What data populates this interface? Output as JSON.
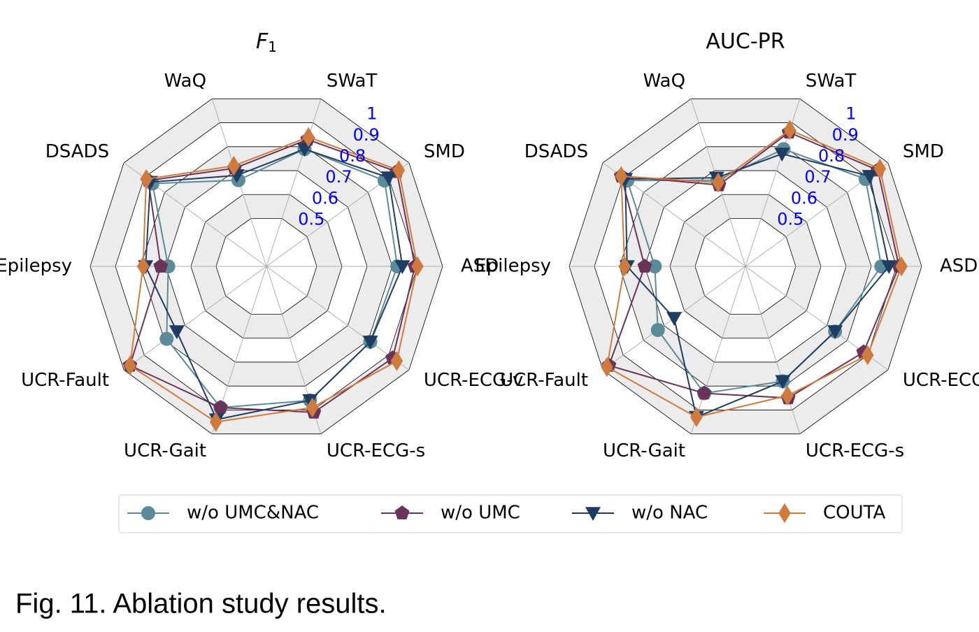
{
  "chart_data": [
    {
      "type": "radar",
      "title": "F",
      "title_subscript": "1",
      "categories": [
        "ASD",
        "SMD",
        "SWaT",
        "WaQ",
        "DSADS",
        "Epilepsy",
        "UCR-Fault",
        "UCR-Gait",
        "UCR-ECG-s",
        "UCR-ECG-v"
      ],
      "rlim": [
        0.3,
        1.0
      ],
      "rticks": [
        0.5,
        0.6,
        0.7,
        0.8,
        0.9,
        1.0
      ],
      "series": [
        {
          "name": "w/o UMC&NAC",
          "color": "#5b8a99",
          "marker": "circle",
          "values": [
            0.82,
            0.88,
            0.79,
            0.66,
            0.86,
            0.69,
            0.79,
            0.89,
            0.86,
            0.81
          ]
        },
        {
          "name": "w/o UMC",
          "color": "#6a3359",
          "marker": "pentagon",
          "values": [
            0.89,
            0.94,
            0.83,
            0.71,
            0.88,
            0.72,
            0.97,
            0.89,
            0.91,
            0.92
          ]
        },
        {
          "name": "w/o NAC",
          "color": "#1f3c63",
          "marker": "triangle-down",
          "values": [
            0.84,
            0.9,
            0.79,
            0.68,
            0.87,
            0.78,
            0.74,
            0.94,
            0.86,
            0.81
          ]
        },
        {
          "name": "COUTA",
          "color": "#d07b3e",
          "marker": "diamond",
          "values": [
            0.9,
            0.95,
            0.84,
            0.72,
            0.89,
            0.79,
            0.97,
            0.95,
            0.89,
            0.94
          ]
        }
      ]
    },
    {
      "type": "radar",
      "title": "AUC-PR",
      "categories": [
        "ASD",
        "SMD",
        "SWaT",
        "WaQ",
        "DSADS",
        "Epilepsy",
        "UCR-Fault",
        "UCR-Gait",
        "UCR-ECG-s",
        "UCR-ECG-v"
      ],
      "rlim": [
        0.3,
        1.0
      ],
      "rticks": [
        0.5,
        0.6,
        0.7,
        0.8,
        0.9,
        1.0
      ],
      "series": [
        {
          "name": "w/o UMC&NAC",
          "color": "#5b8a99",
          "marker": "circle",
          "values": [
            0.84,
            0.89,
            0.79,
            0.66,
            0.88,
            0.66,
            0.73,
            0.83,
            0.78,
            0.74
          ]
        },
        {
          "name": "w/o UMC",
          "color": "#6a3359",
          "marker": "pentagon",
          "values": [
            0.91,
            0.95,
            0.86,
            0.64,
            0.91,
            0.7,
            0.97,
            0.83,
            0.85,
            0.88
          ]
        },
        {
          "name": "w/o NAC",
          "color": "#1f3c63",
          "marker": "triangle-down",
          "values": [
            0.87,
            0.91,
            0.77,
            0.67,
            0.89,
            0.77,
            0.65,
            0.93,
            0.78,
            0.74
          ]
        },
        {
          "name": "COUTA",
          "color": "#d07b3e",
          "marker": "diamond",
          "values": [
            0.92,
            0.96,
            0.87,
            0.65,
            0.91,
            0.78,
            0.98,
            0.93,
            0.84,
            0.9
          ]
        }
      ]
    }
  ],
  "caption": "Fig. 11. Ablation study results."
}
